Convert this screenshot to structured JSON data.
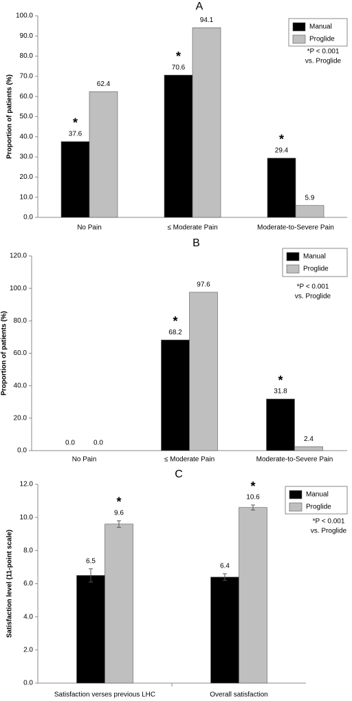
{
  "chart_data": [
    {
      "type": "bar",
      "title": "A",
      "y_label": "Proportion of patients (%)",
      "categories": [
        "No Pain",
        "≤ Moderate Pain",
        "Moderate-to-Severe Pain"
      ],
      "series": [
        {
          "name": "Manual",
          "color": "#000000",
          "values": [
            37.6,
            70.6,
            29.4
          ],
          "significant": [
            true,
            true,
            true
          ]
        },
        {
          "name": "Proglide",
          "color": "#bfbfbf",
          "values": [
            62.4,
            94.1,
            5.9
          ],
          "significant": [
            false,
            false,
            false
          ]
        }
      ],
      "ylim": [
        0,
        100
      ],
      "yticks": [
        {
          "value": 0,
          "label": "0.0"
        },
        {
          "value": 10,
          "label": "10.0"
        },
        {
          "value": 20,
          "label": "20.0"
        },
        {
          "value": 30,
          "label": "30.0"
        },
        {
          "value": 40,
          "label": "40.0"
        },
        {
          "value": 50,
          "label": "50.0"
        },
        {
          "value": 60,
          "label": "60.0"
        },
        {
          "value": 70,
          "label": "70.0"
        },
        {
          "value": 80,
          "label": "80.0"
        },
        {
          "value": 90,
          "label": "90.0"
        },
        {
          "value": 100,
          "label": "100.0"
        }
      ],
      "significance_marker": "*",
      "note": [
        "*P < 0.001",
        "vs. Proglide"
      ],
      "legend": "top-right"
    },
    {
      "type": "bar",
      "title": "B",
      "y_label": "Proportion of patients (%)",
      "categories": [
        "No Pain",
        "≤ Moderate Pain",
        "Moderate-to-Severe Pain"
      ],
      "series": [
        {
          "name": "Manual",
          "color": "#000000",
          "values": [
            0,
            68.2,
            31.8
          ],
          "value_labels": [
            "0.0",
            "68.2",
            "31.8"
          ],
          "significant": [
            false,
            true,
            true
          ]
        },
        {
          "name": "Proglide",
          "color": "#bfbfbf",
          "values": [
            0,
            97.6,
            2.4
          ],
          "value_labels": [
            "0.0",
            "97.6",
            "2.4"
          ],
          "significant": [
            false,
            false,
            false
          ]
        }
      ],
      "ylim": [
        0,
        120
      ],
      "yticks": [
        {
          "value": 0,
          "label": "0.0"
        },
        {
          "value": 20,
          "label": "20.0"
        },
        {
          "value": 40,
          "label": "40.0"
        },
        {
          "value": 60,
          "label": "60.0"
        },
        {
          "value": 80,
          "label": "80.0"
        },
        {
          "value": 100,
          "label": "100.0"
        },
        {
          "value": 120,
          "label": "120.0"
        }
      ],
      "significance_marker": "*",
      "note": [
        "*P < 0.001",
        "vs. Proglide"
      ],
      "legend": "top-right"
    },
    {
      "type": "bar",
      "title": "C",
      "y_label": "Satisfaction level (11-point scale)",
      "categories": [
        "Satisfaction verses previous LHC",
        "Overall satisfaction"
      ],
      "series": [
        {
          "name": "Manual",
          "color": "#000000",
          "values": [
            6.5,
            6.4
          ],
          "errors": [
            0.4,
            0.2
          ],
          "significant": [
            false,
            false
          ]
        },
        {
          "name": "Proglide",
          "color": "#bfbfbf",
          "values": [
            9.6,
            10.6
          ],
          "errors": [
            0.2,
            0.15
          ],
          "significant": [
            true,
            true
          ]
        }
      ],
      "ylim": [
        0,
        12
      ],
      "yticks": [
        {
          "value": 0,
          "label": "0.0"
        },
        {
          "value": 2,
          "label": "2.0"
        },
        {
          "value": 4,
          "label": "4.0"
        },
        {
          "value": 6,
          "label": "6.0"
        },
        {
          "value": 8,
          "label": "8.0"
        },
        {
          "value": 10,
          "label": "10.0"
        },
        {
          "value": 12,
          "label": "12.0"
        }
      ],
      "significance_marker": "*",
      "note": [
        "*P < 0.001",
        "vs. Proglide"
      ],
      "legend": "top-right"
    }
  ]
}
